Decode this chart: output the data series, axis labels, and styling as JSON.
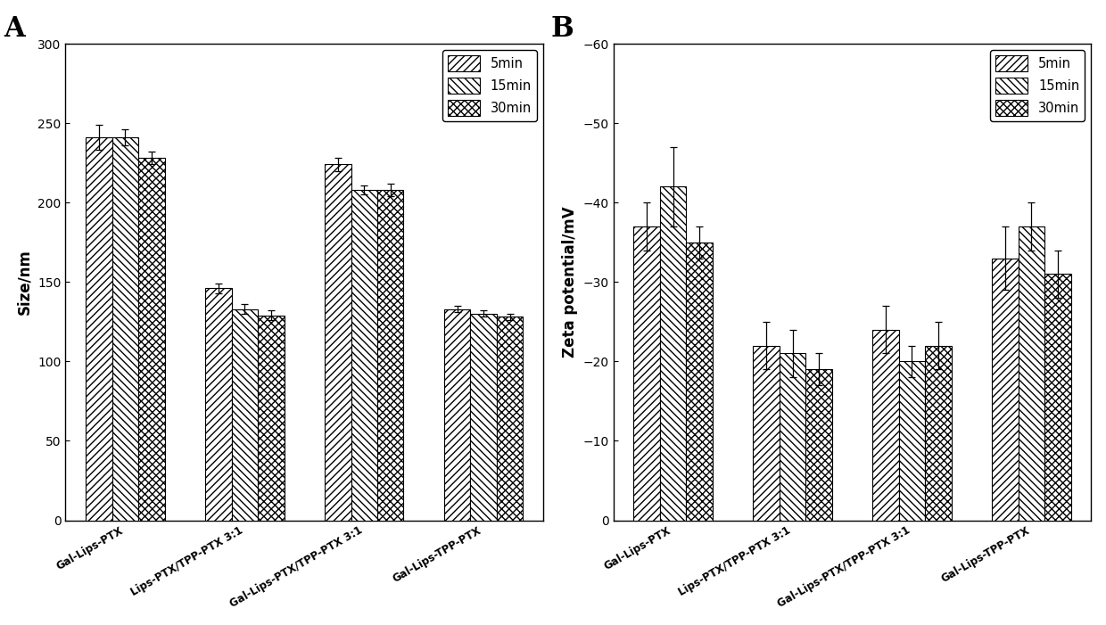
{
  "panel_A": {
    "categories": [
      "Gal-Lips-PTX",
      "Lips-PTX/TPP-PTX 3:1",
      "Gal-Lips-PTX/TPP-PTX 3:1",
      "Gal-Lips-TPP-PTX"
    ],
    "series": {
      "5min": [
        241,
        146,
        224,
        133
      ],
      "15min": [
        241,
        133,
        208,
        130
      ],
      "30min": [
        228,
        129,
        208,
        128
      ]
    },
    "errors": {
      "5min": [
        8,
        3,
        4,
        2
      ],
      "15min": [
        5,
        3,
        3,
        2
      ],
      "30min": [
        4,
        3,
        4,
        2
      ]
    },
    "ylabel": "Size/nm",
    "ylim": [
      0,
      300
    ],
    "yticks": [
      0,
      50,
      100,
      150,
      200,
      250,
      300
    ],
    "panel_label": "A"
  },
  "panel_B": {
    "categories": [
      "Gal-Lips-PTX",
      "Lips-PTX/TPP-PTX 3:1",
      "Gal-Lips-PTX/TPP-PTX 3:1",
      "Gal-Lips-TPP-PTX"
    ],
    "series": {
      "5min": [
        -37,
        -22,
        -24,
        -33
      ],
      "15min": [
        -42,
        -21,
        -20,
        -37
      ],
      "30min": [
        -35,
        -19,
        -22,
        -31
      ]
    },
    "errors": {
      "5min": [
        3,
        3,
        3,
        4
      ],
      "15min": [
        5,
        3,
        2,
        3
      ],
      "30min": [
        2,
        2,
        3,
        3
      ]
    },
    "ylabel": "Zeta potential/mV",
    "ylim": [
      -60,
      0
    ],
    "yticks": [
      -60,
      -50,
      -40,
      -30,
      -20,
      -10,
      0
    ],
    "panel_label": "B"
  },
  "legend_labels": [
    "5min",
    "15min",
    "30min"
  ],
  "bar_width": 0.22,
  "xlabel_rotation": 30,
  "xlabel_fontsize": 8.5,
  "tick_fontsize": 10,
  "label_fontsize": 12,
  "legend_fontsize": 10.5,
  "panel_label_fontsize": 22
}
